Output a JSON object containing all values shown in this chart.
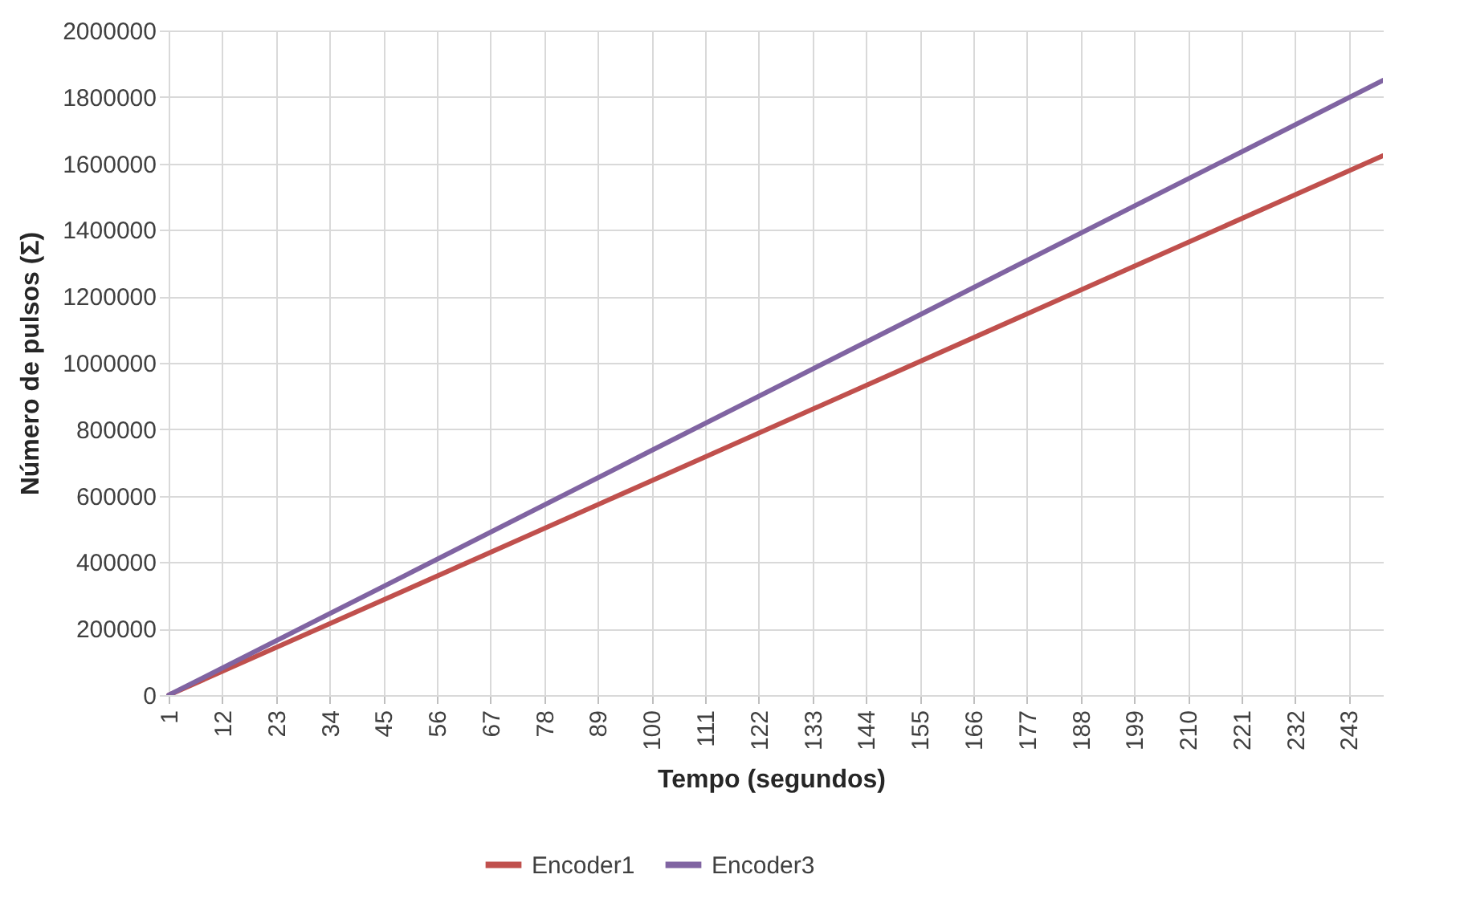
{
  "chart_data": {
    "type": "line",
    "xlabel": "Tempo (segundos)",
    "ylabel": "Número de pulsos  (Σ)",
    "x": [
      1,
      50,
      100,
      150,
      200,
      250
    ],
    "series": [
      {
        "name": "Encoder1",
        "color": "#c0504d",
        "values": [
          0,
          319000,
          645000,
          971000,
          1297000,
          1623000
        ]
      },
      {
        "name": "Encoder3",
        "color": "#8064a2",
        "values": [
          0,
          364000,
          736000,
          1107000,
          1479000,
          1850000
        ]
      }
    ],
    "xlim": [
      -1,
      250
    ],
    "xticks": [
      1,
      12,
      23,
      34,
      45,
      56,
      67,
      78,
      89,
      100,
      111,
      122,
      133,
      144,
      155,
      166,
      177,
      188,
      199,
      210,
      221,
      232,
      243
    ],
    "ylim": [
      0,
      2000000
    ],
    "yticks": [
      0,
      200000,
      400000,
      600000,
      800000,
      1000000,
      1200000,
      1400000,
      1600000,
      1800000,
      2000000
    ],
    "grid": true,
    "legend": "bottom",
    "marker": "none",
    "line_style": "solid"
  }
}
